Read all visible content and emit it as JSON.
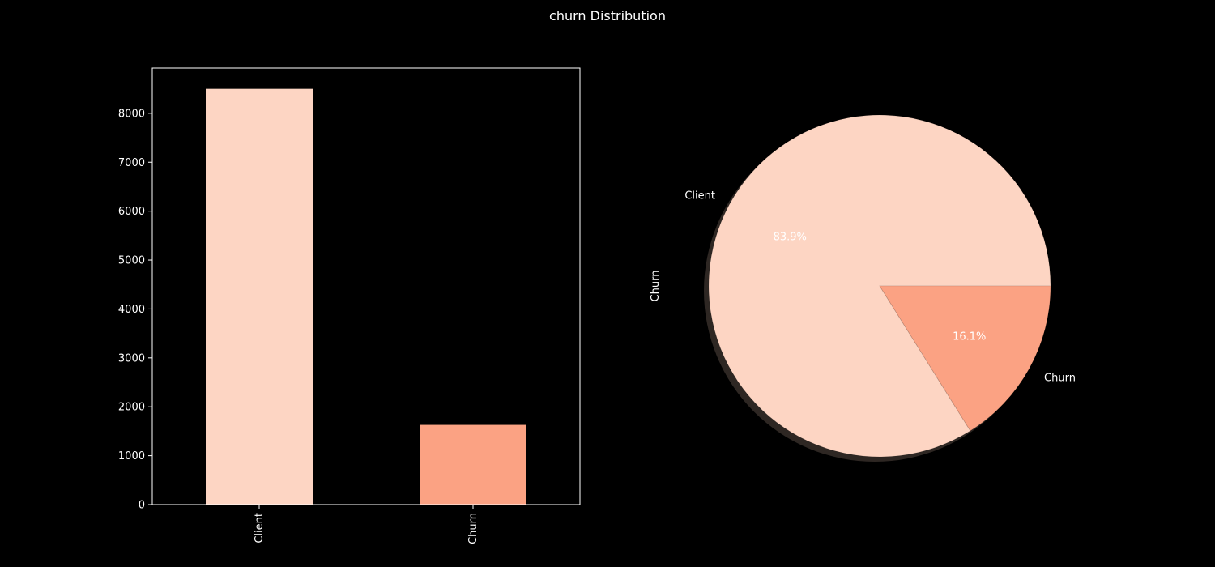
{
  "figure": {
    "title": "churn Distribution",
    "background": "#000000",
    "text_color": "#ffffff"
  },
  "chart_data": [
    {
      "type": "bar",
      "categories": [
        "Client",
        "Churn"
      ],
      "values": [
        8500,
        1630
      ],
      "colors": [
        "#fdd5c3",
        "#fba283"
      ],
      "xlabel": "",
      "ylabel": "",
      "ylim": [
        0,
        8925
      ],
      "yticks": [
        0,
        1000,
        2000,
        3000,
        4000,
        5000,
        6000,
        7000,
        8000
      ],
      "xtick_rotation": "vertical",
      "grid": false
    },
    {
      "type": "pie",
      "labels": [
        "Client",
        "Churn"
      ],
      "values": [
        83.9,
        16.1
      ],
      "percent_labels": [
        "83.9%",
        "16.1%"
      ],
      "colors": [
        "#fdd5c3",
        "#fba283"
      ],
      "shadow": true,
      "ylabel": "Churn"
    }
  ]
}
